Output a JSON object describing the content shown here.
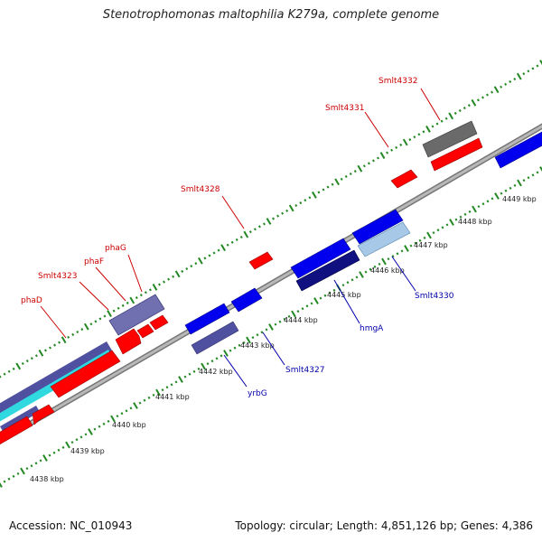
{
  "title": "Stenotrophomonas maltophilia K279a, complete genome",
  "footer": {
    "accession": "Accession: NC_010943",
    "summary": "Topology: circular; Length: 4,851,126 bp; Genes: 4,386"
  },
  "colors": {
    "forward": "#ff0000",
    "reverse": "#0000ff",
    "backbone": "#999999",
    "tick": "#228822",
    "label_top": "#cc0000",
    "label_bottom": "#0000aa"
  },
  "kbp_labels": [
    "4438 kbp",
    "4439 kbp",
    "4440 kbp",
    "4441 kbp",
    "4442 kbp",
    "4443 kbp",
    "4444 kbp",
    "4445 kbp",
    "4446 kbp",
    "4447 kbp",
    "4448 kbp",
    "4449 kbp"
  ],
  "gene_labels_top": [
    "phaD",
    "Smlt4323",
    "phaF",
    "phaG",
    "Smlt4328",
    "Smlt4331",
    "Smlt4332"
  ],
  "gene_labels_bottom": [
    "yrbG",
    "Smlt4327",
    "hmgA",
    "Smlt4330"
  ]
}
